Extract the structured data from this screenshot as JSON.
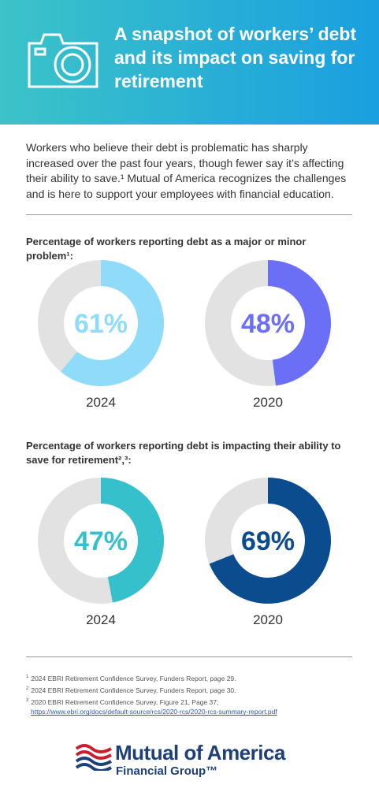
{
  "header": {
    "title": "A snapshot of workers’ debt and its impact on saving for retirement"
  },
  "intro": "Workers who believe their debt is problematic has sharply increased over the past four years, though fewer say it’s affecting their ability to save.¹ Mutual of America recognizes the challenges and is here to support your employees with financial education.",
  "chart_data": [
    {
      "type": "donut",
      "title": "Percentage of workers reporting debt as a major or minor problem¹:",
      "categories": [
        "2024",
        "2020"
      ],
      "values": [
        61,
        48
      ],
      "value_labels": [
        "61%",
        "48%"
      ],
      "colors": [
        "#8fdbfa",
        "#6b6ff6"
      ],
      "track_color": "#e2e2e2"
    },
    {
      "type": "donut",
      "title": "Percentage of workers reporting debt is impacting their ability to save for retirement²,³:",
      "categories": [
        "2024",
        "2020"
      ],
      "values": [
        47,
        69
      ],
      "value_labels": [
        "47%",
        "69%"
      ],
      "colors": [
        "#35c0cb",
        "#0b4c8e"
      ],
      "track_color": "#e2e2e2"
    }
  ],
  "footnotes": [
    {
      "mark": "1",
      "text": "2024 EBRI Retirement Confidence Survey, Funders Report, page 29."
    },
    {
      "mark": "2",
      "text": "2024 EBRI Retirement Confidence Survey, Funders Report, page 30."
    },
    {
      "mark": "3",
      "text": "2020 EBRI Retirement Confidence Survey, Figure 21, Page 37;",
      "link": "https://www.ebri.org/docs/default-source/rcs/2020-rcs/2020-rcs-summary-report.pdf"
    }
  ],
  "logo": {
    "name": "Mutual of America",
    "sub": "Financial Group™"
  }
}
